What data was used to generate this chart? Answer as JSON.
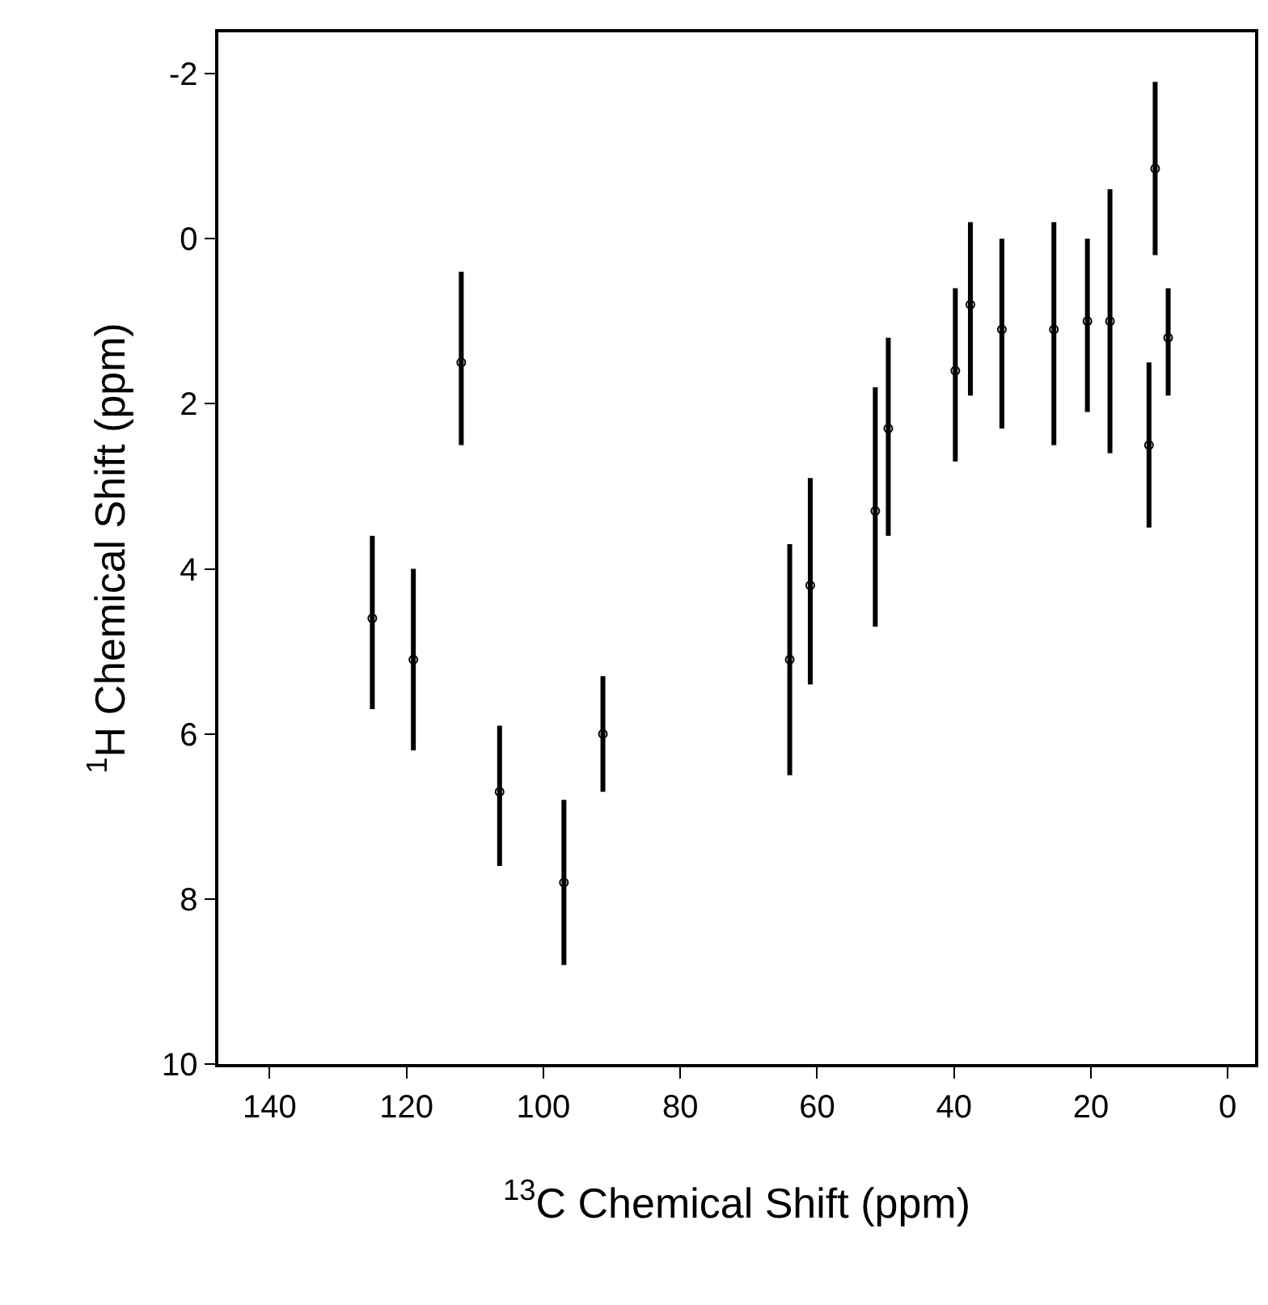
{
  "chart_data": {
    "type": "scatter",
    "xlabel": "$^{13}$C Chemical Shift (ppm)",
    "ylabel": "$^{1}$H Chemical Shift (ppm)",
    "x": [
      112,
      125,
      119,
      106.4,
      97,
      91.3,
      64,
      61,
      51.5,
      49.6,
      39.8,
      37.6,
      33,
      25.4,
      20.5,
      17.2,
      10.6,
      11.5,
      8.7
    ],
    "series": [
      {
        "color": "#000000",
        "values": [
          1.5,
          4.6,
          5.1,
          6.7,
          7.8,
          6.0,
          5.1,
          4.2,
          3.3,
          2.3,
          1.6,
          0.8,
          1.1,
          1.1,
          1.0,
          1.0,
          -0.85,
          2.5,
          1.2
        ],
        "errors": [
          [
            0.4,
            2.5
          ],
          [
            3.6,
            5.7
          ],
          [
            4.0,
            6.2
          ],
          [
            5.9,
            7.6
          ],
          [
            6.8,
            8.8
          ],
          [
            5.3,
            6.7
          ],
          [
            3.7,
            6.5
          ],
          [
            2.9,
            5.4
          ],
          [
            1.8,
            4.7
          ],
          [
            1.2,
            3.6
          ],
          [
            0.6,
            2.7
          ],
          [
            -0.2,
            1.9
          ],
          [
            0.0,
            2.3
          ],
          [
            -0.2,
            2.5
          ],
          [
            0.0,
            2.1
          ],
          [
            -0.6,
            2.6
          ],
          [
            -1.9,
            0.2
          ],
          [
            1.5,
            3.5
          ],
          [
            0.6,
            1.9
          ]
        ]
      }
    ],
    "xlim": [
      147.5,
      -4
    ],
    "xticks": [
      140,
      120,
      100,
      80,
      60,
      40,
      20,
      0
    ],
    "ylim": [
      10,
      -2.5
    ],
    "yticks": [
      -2,
      0,
      2,
      4,
      6,
      8,
      10
    ],
    "marker": "circle"
  }
}
